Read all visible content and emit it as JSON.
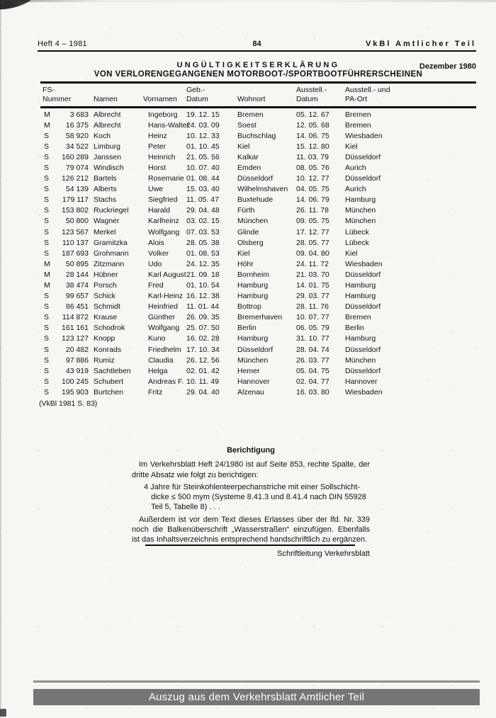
{
  "colors": {
    "paper": "#f7f6f3",
    "ink": "#121212",
    "banner_bg": "#757575",
    "banner_text": "#ffffff",
    "footer_line": "#8f8f8f"
  },
  "header": {
    "left": "Heft 4 – 1981",
    "page_number": "84",
    "right": "VkBl Amtlicher Teil"
  },
  "title": {
    "line1": "UNGÜLTIGKEITSERKLÄRUNG",
    "line2": "VON VERLORENGEGANGENEN MOTORBOOT-/SPORTBOOTFÜHRERSCHEINEN",
    "date": "Dezember 1980"
  },
  "table": {
    "columns": [
      {
        "line1": "FS-",
        "line2": "Nummer"
      },
      {
        "line1": "",
        "line2": "Namen"
      },
      {
        "line1": "",
        "line2": "Vornamen"
      },
      {
        "line1": "Geb.-",
        "line2": "Datum"
      },
      {
        "line1": "",
        "line2": "Wohnort"
      },
      {
        "line1": "Ausstell.-",
        "line2": "Datum"
      },
      {
        "line1": "Ausstell.- und",
        "line2": "PA-Ort"
      }
    ],
    "rows": [
      [
        "M",
        "3 683",
        "Albrecht",
        "Ingeborg",
        "19. 12. 15",
        "Bremen",
        "05. 12. 67",
        "Bremen"
      ],
      [
        "M",
        "16 375",
        "Albrecht",
        "Hans-Walter",
        "24. 03. 09",
        "Soest",
        "12. 05. 68",
        "Bremen"
      ],
      [
        "S",
        "58 920",
        "Koch",
        "Heinz",
        "10. 12. 33",
        "Buchschlag",
        "14. 06. 75",
        "Wiesbaden"
      ],
      [
        "S",
        "34 522",
        "Limburg",
        "Peter",
        "01. 10. 45",
        "Kiel",
        "15. 12. 80",
        "Kiel"
      ],
      [
        "S",
        "160 289",
        "Janssen",
        "Heinrich",
        "21. 05. 56",
        "Kalkar",
        "11. 03. 79",
        "Düsseldorf"
      ],
      [
        "S",
        "79 074",
        "Windisch",
        "Horst",
        "10. 07. 40",
        "Emden",
        "08. 05. 76",
        "Aurich"
      ],
      [
        "S",
        "126 212",
        "Bartels",
        "Rosemarie",
        "01. 08. 44",
        "Düsseldorf",
        "10. 12. 77",
        "Düsseldorf"
      ],
      [
        "S",
        "54 139",
        "Alberts",
        "Uwe",
        "15. 03. 40",
        "Wilhelmshaven",
        "04. 05. 75",
        "Aurich"
      ],
      [
        "S",
        "179 117",
        "Stachs",
        "Siegfried",
        "11. 05. 47",
        "Buxtehude",
        "14. 06. 79",
        "Hamburg"
      ],
      [
        "S",
        "153 802",
        "Ruckriegel",
        "Harald",
        "29. 04. 48",
        "Fürth",
        "26. 11. 78",
        "München"
      ],
      [
        "S",
        "50 800",
        "Wagner",
        "Karlheinz",
        "03. 02. 15",
        "München",
        "09. 05. 75",
        "München"
      ],
      [
        "S",
        "123 567",
        "Merkel",
        "Wolfgang",
        "07. 03. 53",
        "Glinde",
        "17. 12. 77",
        "Lübeck"
      ],
      [
        "S",
        "110 137",
        "Gramitzka",
        "Alois",
        "28. 05. 38",
        "Olsberg",
        "28. 05. 77",
        "Lübeck"
      ],
      [
        "S",
        "187 693",
        "Grohmann",
        "Volker",
        "01. 08. 53",
        "Kiel",
        "09. 04. 80",
        "Kiel"
      ],
      [
        "M",
        "50 895",
        "Zitzmann",
        "Udo",
        "24. 12. 35",
        "Höhr",
        "24. 11. 72",
        "Wiesbaden"
      ],
      [
        "M",
        "28 144",
        "Hübner",
        "Karl August",
        "21. 09. 18",
        "Bornheim",
        "21. 03. 70",
        "Düsseldorf"
      ],
      [
        "M",
        "38 474",
        "Porsch",
        "Fred",
        "01. 10. 54",
        "Hamburg",
        "14. 01. 75",
        "Hamburg"
      ],
      [
        "S",
        "99 657",
        "Schick",
        "Karl-Heinz",
        "16. 12. 38",
        "Hamburg",
        "29. 03. 77",
        "Hamburg"
      ],
      [
        "S",
        "86 451",
        "Schmidt",
        "Heinfried",
        "11. 01. 44",
        "Bottrop",
        "28. 11. 76",
        "Düsseldorf"
      ],
      [
        "S",
        "114 872",
        "Krause",
        "Günther",
        "26. 09. 35",
        "Bremerhaven",
        "10. 07. 77",
        "Bremen"
      ],
      [
        "S",
        "161 161",
        "Schodrok",
        "Wolfgang",
        "25. 07. 50",
        "Berlin",
        "06. 05. 79",
        "Berlin"
      ],
      [
        "S",
        "123 127",
        "Knopp",
        "Kuno",
        "16. 02. 28",
        "Hamburg",
        "31. 10. 77",
        "Hamburg"
      ],
      [
        "S",
        "20 482",
        "Konrads",
        "Friedhelm",
        "17. 10. 34",
        "Düsseldorf",
        "28. 04. 74",
        "Düsseldorf"
      ],
      [
        "S",
        "97 886",
        "Rumiz",
        "Claudia",
        "26. 12. 56",
        "München",
        "26. 03. 77",
        "München"
      ],
      [
        "S",
        "43 919",
        "Sachtleben",
        "Helga",
        "02. 01. 42",
        "Hemer",
        "05. 04. 75",
        "Düsseldorf"
      ],
      [
        "S",
        "100 245",
        "Schubert",
        "Andreas F.",
        "10. 11. 49",
        "Hannover",
        "02. 04. 77",
        "Hannover"
      ],
      [
        "S",
        "195 903",
        "Burtchen",
        "Fritz",
        "29. 04. 40",
        "Alzenau",
        "16. 03. 80",
        "Wiesbaden"
      ]
    ]
  },
  "footnote": "(VkBl 1981 S. 83)",
  "correction": {
    "heading": "Berichtigung",
    "para1_lines": [
      "Im Verkehrsblatt Heft 24/1980 ist auf Seite 853, rechte Spalte, der",
      "dritte Absatz wie folgt zu berichtigen:"
    ],
    "para2_lines": [
      "4 Jahre für Steinkohlenteerpechanstriche mit einer Sollschicht-",
      "dicke ≤ 500 mym (Systeme 8.41.3 und 8.41.4 nach DIN 55928",
      "Teil 5, Tabelle 8)  . . ."
    ],
    "para3_lines": [
      "Außerdem ist vor dem Text dieses Erlasses über der lfd. Nr. 339",
      "noch die Balkenüberschrift „Wasserstraßen“ einzufügen. Ebenfalls",
      "ist das Inhaltsverzeichnis entsprechend handschriftlich zu ergänzen."
    ],
    "signature": "Schriftleitung Verkehrsblatt"
  },
  "footer": {
    "banner": "Auszug aus dem Verkehrsblatt Amtlicher Teil"
  }
}
